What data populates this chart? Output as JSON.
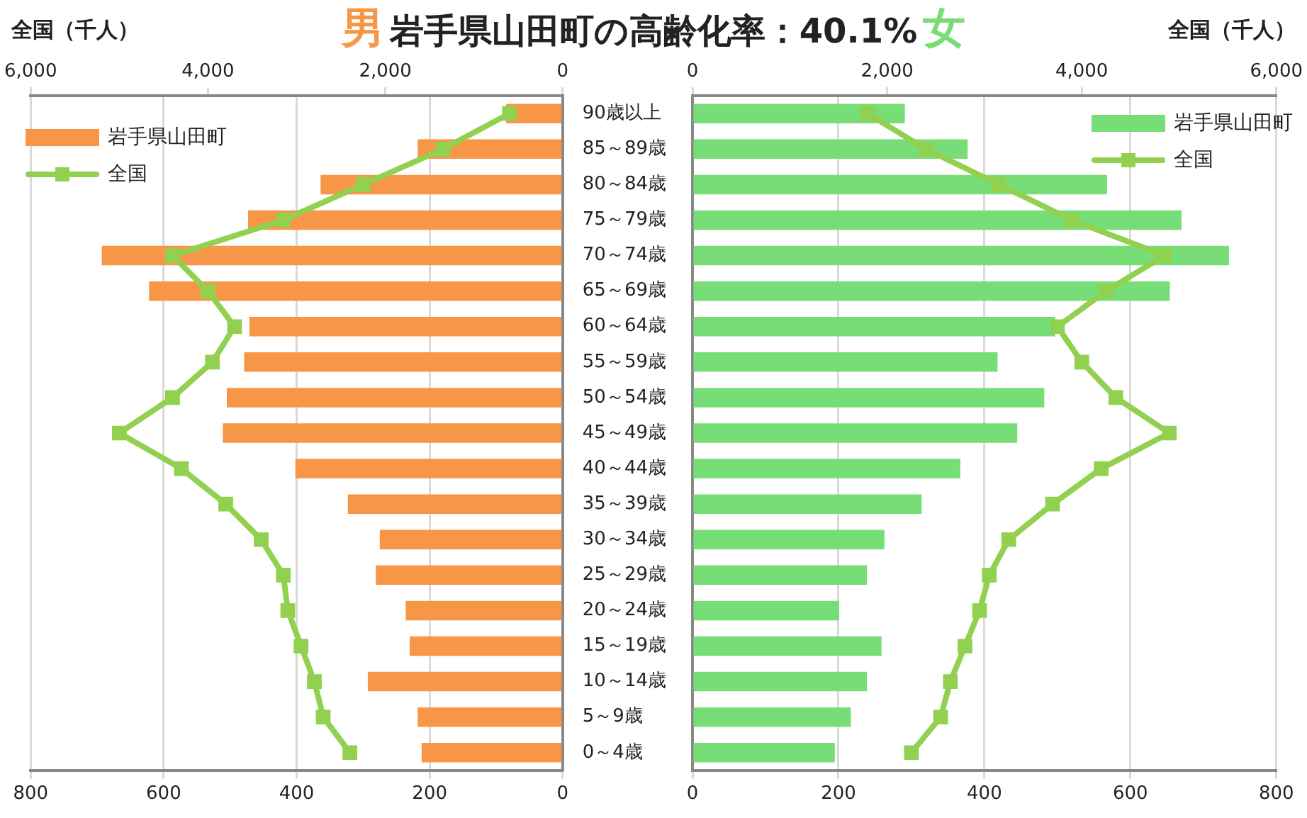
{
  "chart_data": [
    {
      "type": "bar",
      "orientation": "horizontal",
      "title": "岩手県山田町の高齢化率：40.1%",
      "annotations": [
        "男"
      ],
      "x2label": "全国（千人）",
      "categories": [
        "90歳以上",
        "85～89歳",
        "80～84歳",
        "75～79歳",
        "70～74歳",
        "65～69歳",
        "60～64歳",
        "55～59歳",
        "50～54歳",
        "45～49歳",
        "40～44歳",
        "35～39歳",
        "30～34歳",
        "25～29歳",
        "20～24歳",
        "15～19歳",
        "10～14歳",
        "5～9歳",
        "0～4歳"
      ],
      "series": [
        {
          "name": "岩手県山田町",
          "color": "#f79646",
          "values": [
            85,
            218,
            364,
            473,
            693,
            622,
            471,
            479,
            505,
            511,
            402,
            323,
            275,
            281,
            236,
            230,
            293,
            218,
            212
          ]
        },
        {
          "name": "全国",
          "type": "line",
          "axis": "x2",
          "color": "#92d050",
          "values": [
            600,
            1350,
            2250,
            3150,
            4400,
            4000,
            3700,
            3950,
            4400,
            5000,
            4300,
            3800,
            3400,
            3150,
            3100,
            2950,
            2800,
            2700,
            2400
          ]
        }
      ],
      "xlim": [
        800,
        0
      ],
      "xticks": [
        800,
        600,
        400,
        200,
        0
      ],
      "x2lim": [
        6000,
        0
      ],
      "x2ticks": [
        {
          "value": 6000,
          "label": "6,000"
        },
        {
          "value": 4000,
          "label": "4,000"
        },
        {
          "value": 2000,
          "label": "2,000"
        },
        0
      ],
      "grid": "x",
      "legend": "top left",
      "marker": "square"
    },
    {
      "type": "bar",
      "orientation": "horizontal",
      "annotations": [
        "女"
      ],
      "x2label": "全国（千人）",
      "series": [
        {
          "name": "岩手県山田町",
          "color": "#77dd77",
          "values": [
            291,
            377,
            568,
            670,
            735,
            654,
            497,
            418,
            482,
            445,
            367,
            314,
            263,
            239,
            201,
            259,
            239,
            217,
            195
          ]
        },
        {
          "name": "全国",
          "type": "line",
          "axis": "x2",
          "color": "#92d050",
          "values": [
            1800,
            2400,
            3150,
            3900,
            4850,
            4250,
            3750,
            4000,
            4350,
            4900,
            4200,
            3700,
            3250,
            3050,
            2950,
            2800,
            2650,
            2550,
            2250
          ]
        }
      ],
      "xlim": [
        0,
        800
      ],
      "xticks": [
        0,
        200,
        400,
        600,
        800
      ],
      "x2lim": [
        0,
        6000
      ],
      "x2ticks": [
        0,
        {
          "value": 2000,
          "label": "2,000"
        },
        {
          "value": 4000,
          "label": "4,000"
        },
        {
          "value": 6000,
          "label": "6,000"
        }
      ],
      "grid": "x",
      "legend": "top right",
      "marker": "square",
      "tick_labels": "x"
    }
  ]
}
